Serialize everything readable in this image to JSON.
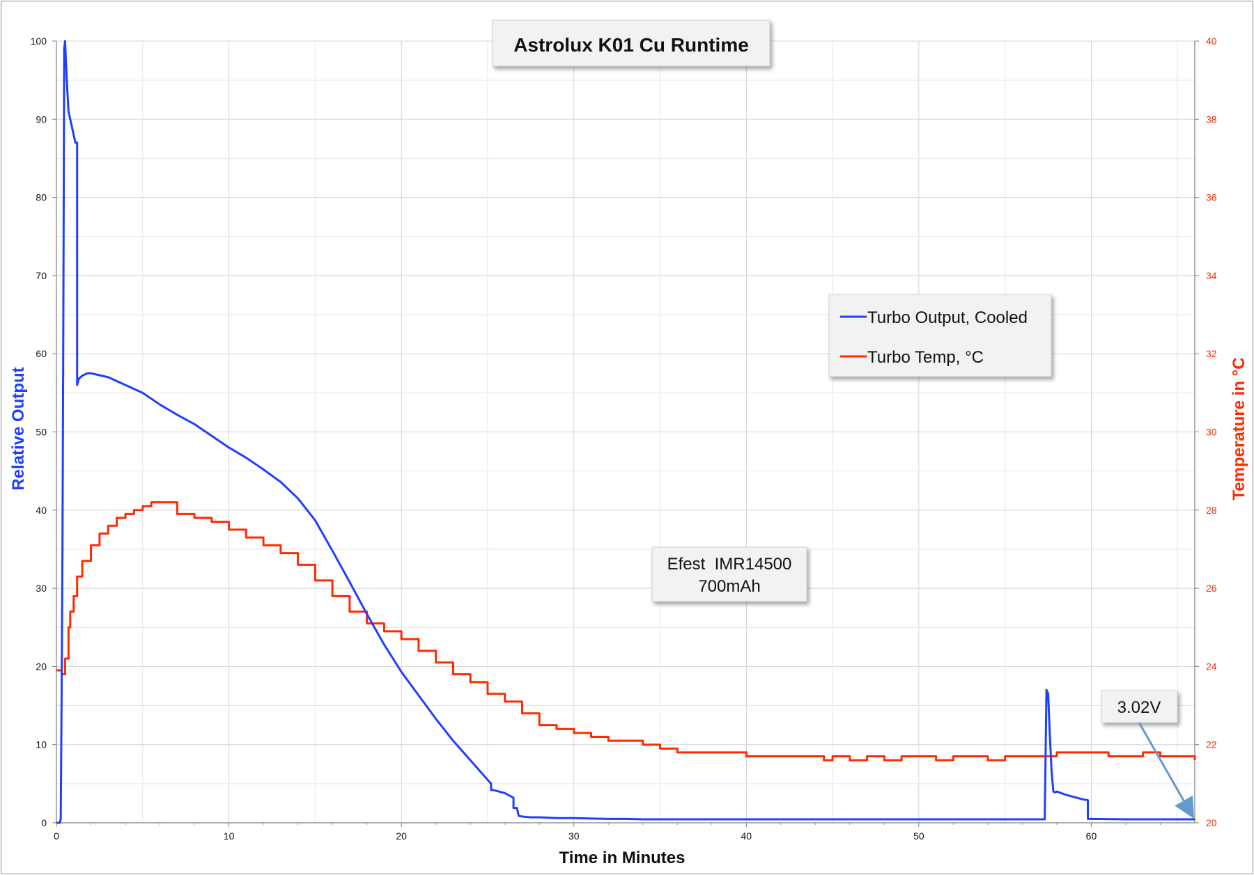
{
  "chart_data": {
    "type": "line",
    "title": "Astrolux K01 Cu Runtime",
    "xlabel": "Time in Minutes",
    "ylabel": "Relative Output",
    "y2label": "Temperature in °C",
    "xlim": [
      0,
      66
    ],
    "ylim": [
      0,
      100
    ],
    "y2lim": [
      20,
      40
    ],
    "x_ticks": [
      0,
      10,
      20,
      30,
      40,
      50,
      60
    ],
    "y_ticks": [
      0,
      10,
      20,
      30,
      40,
      50,
      60,
      70,
      80,
      90,
      100
    ],
    "y2_ticks": [
      20,
      22,
      24,
      26,
      28,
      30,
      32,
      34,
      36,
      38,
      40
    ],
    "grid": true,
    "legend_position": "upper-right",
    "colors": {
      "output": "#1f3fff",
      "temp": "#ff2a00",
      "y2_axis": "#ff2a00",
      "y_axis_title": "#1f3fff",
      "arrow": "#6699cc"
    },
    "series": [
      {
        "name": "Turbo Output, Cooled",
        "axis": "left",
        "x": [
          0,
          0.2,
          0.25,
          0.3,
          0.35,
          0.4,
          0.45,
          0.5,
          0.6,
          0.7,
          0.9,
          1.1,
          1.2,
          1.2,
          1.3,
          1.5,
          1.8,
          2,
          3,
          4,
          5,
          6,
          7,
          8,
          9,
          10,
          11,
          12,
          13,
          14,
          15,
          16,
          17,
          18,
          19,
          20,
          21,
          22,
          23,
          24,
          25,
          25.2,
          25.2,
          25.3,
          26,
          26.5,
          26.5,
          26.7,
          26.8,
          27,
          27.5,
          28,
          29,
          30,
          31,
          32,
          33,
          34,
          35,
          35.2,
          35.2,
          36,
          40,
          45,
          50,
          55,
          57.3,
          57.4,
          57.5,
          57.6,
          57.7,
          57.8,
          57.9,
          58,
          58.5,
          59,
          59.5,
          59.8,
          59.8,
          60,
          62,
          64,
          65.5,
          66
        ],
        "values": [
          0,
          0,
          0.5,
          16,
          35,
          64,
          99,
          100,
          95,
          91,
          89,
          87,
          87,
          56,
          56.8,
          57.2,
          57.5,
          57.5,
          57,
          56,
          55,
          53.5,
          52.2,
          51,
          49.5,
          48,
          46.7,
          45.2,
          43.6,
          41.5,
          38.7,
          34.8,
          30.8,
          26.7,
          22.8,
          19.3,
          16.3,
          13.3,
          10.5,
          8,
          5.5,
          5,
          4.2,
          4.2,
          3.8,
          3.2,
          1.9,
          1.9,
          0.9,
          0.8,
          0.7,
          0.7,
          0.6,
          0.6,
          0.55,
          0.5,
          0.5,
          0.45,
          0.45,
          0.45,
          0.45,
          0.45,
          0.45,
          0.45,
          0.45,
          0.45,
          0.45,
          17,
          16.5,
          11,
          6.5,
          4,
          3.9,
          4,
          3.6,
          3.3,
          3,
          2.9,
          0.5,
          0.5,
          0.45,
          0.45,
          0.45,
          0.45
        ],
        "note": ""
      },
      {
        "name": "Turbo Temp, °C",
        "axis": "right",
        "x": [
          0,
          0.3,
          0.5,
          0.7,
          0.8,
          1,
          1.2,
          1.5,
          2,
          2.5,
          3,
          3.5,
          4,
          4.5,
          5,
          5.5,
          6,
          6.5,
          7,
          7.5,
          8,
          9,
          10,
          11,
          12,
          13,
          14,
          15,
          16,
          17,
          18,
          19,
          20,
          21,
          22,
          23,
          24,
          25,
          26,
          27,
          28,
          29,
          30,
          31,
          32,
          33,
          34,
          35,
          36,
          37,
          38,
          39,
          40,
          42,
          44,
          44.5,
          45,
          46,
          47,
          48,
          49,
          50,
          51,
          52,
          53,
          54,
          55,
          56,
          57,
          58,
          59,
          60,
          61,
          62,
          63,
          64,
          65,
          66
        ],
        "values": [
          23.9,
          23.8,
          24.2,
          25.0,
          25.4,
          25.8,
          26.3,
          26.7,
          27.1,
          27.4,
          27.6,
          27.8,
          27.9,
          28.0,
          28.1,
          28.2,
          28.2,
          28.2,
          27.9,
          27.9,
          27.8,
          27.7,
          27.5,
          27.3,
          27.1,
          26.9,
          26.6,
          26.2,
          25.8,
          25.4,
          25.1,
          24.9,
          24.7,
          24.4,
          24.1,
          23.8,
          23.6,
          23.3,
          23.1,
          22.8,
          22.5,
          22.4,
          22.3,
          22.2,
          22.1,
          22.1,
          22.0,
          21.9,
          21.8,
          21.8,
          21.8,
          21.8,
          21.7,
          21.7,
          21.7,
          21.6,
          21.7,
          21.6,
          21.7,
          21.6,
          21.7,
          21.7,
          21.6,
          21.7,
          21.7,
          21.6,
          21.7,
          21.7,
          21.7,
          21.8,
          21.8,
          21.8,
          21.7,
          21.7,
          21.8,
          21.7,
          21.7,
          21.6
        ]
      }
    ],
    "annotations": [
      {
        "line1": "Efest  IMR14500",
        "line2": "700mAh"
      },
      {
        "text": "3.02V",
        "points_to_x": 66,
        "points_to_y": 0.45
      }
    ]
  }
}
